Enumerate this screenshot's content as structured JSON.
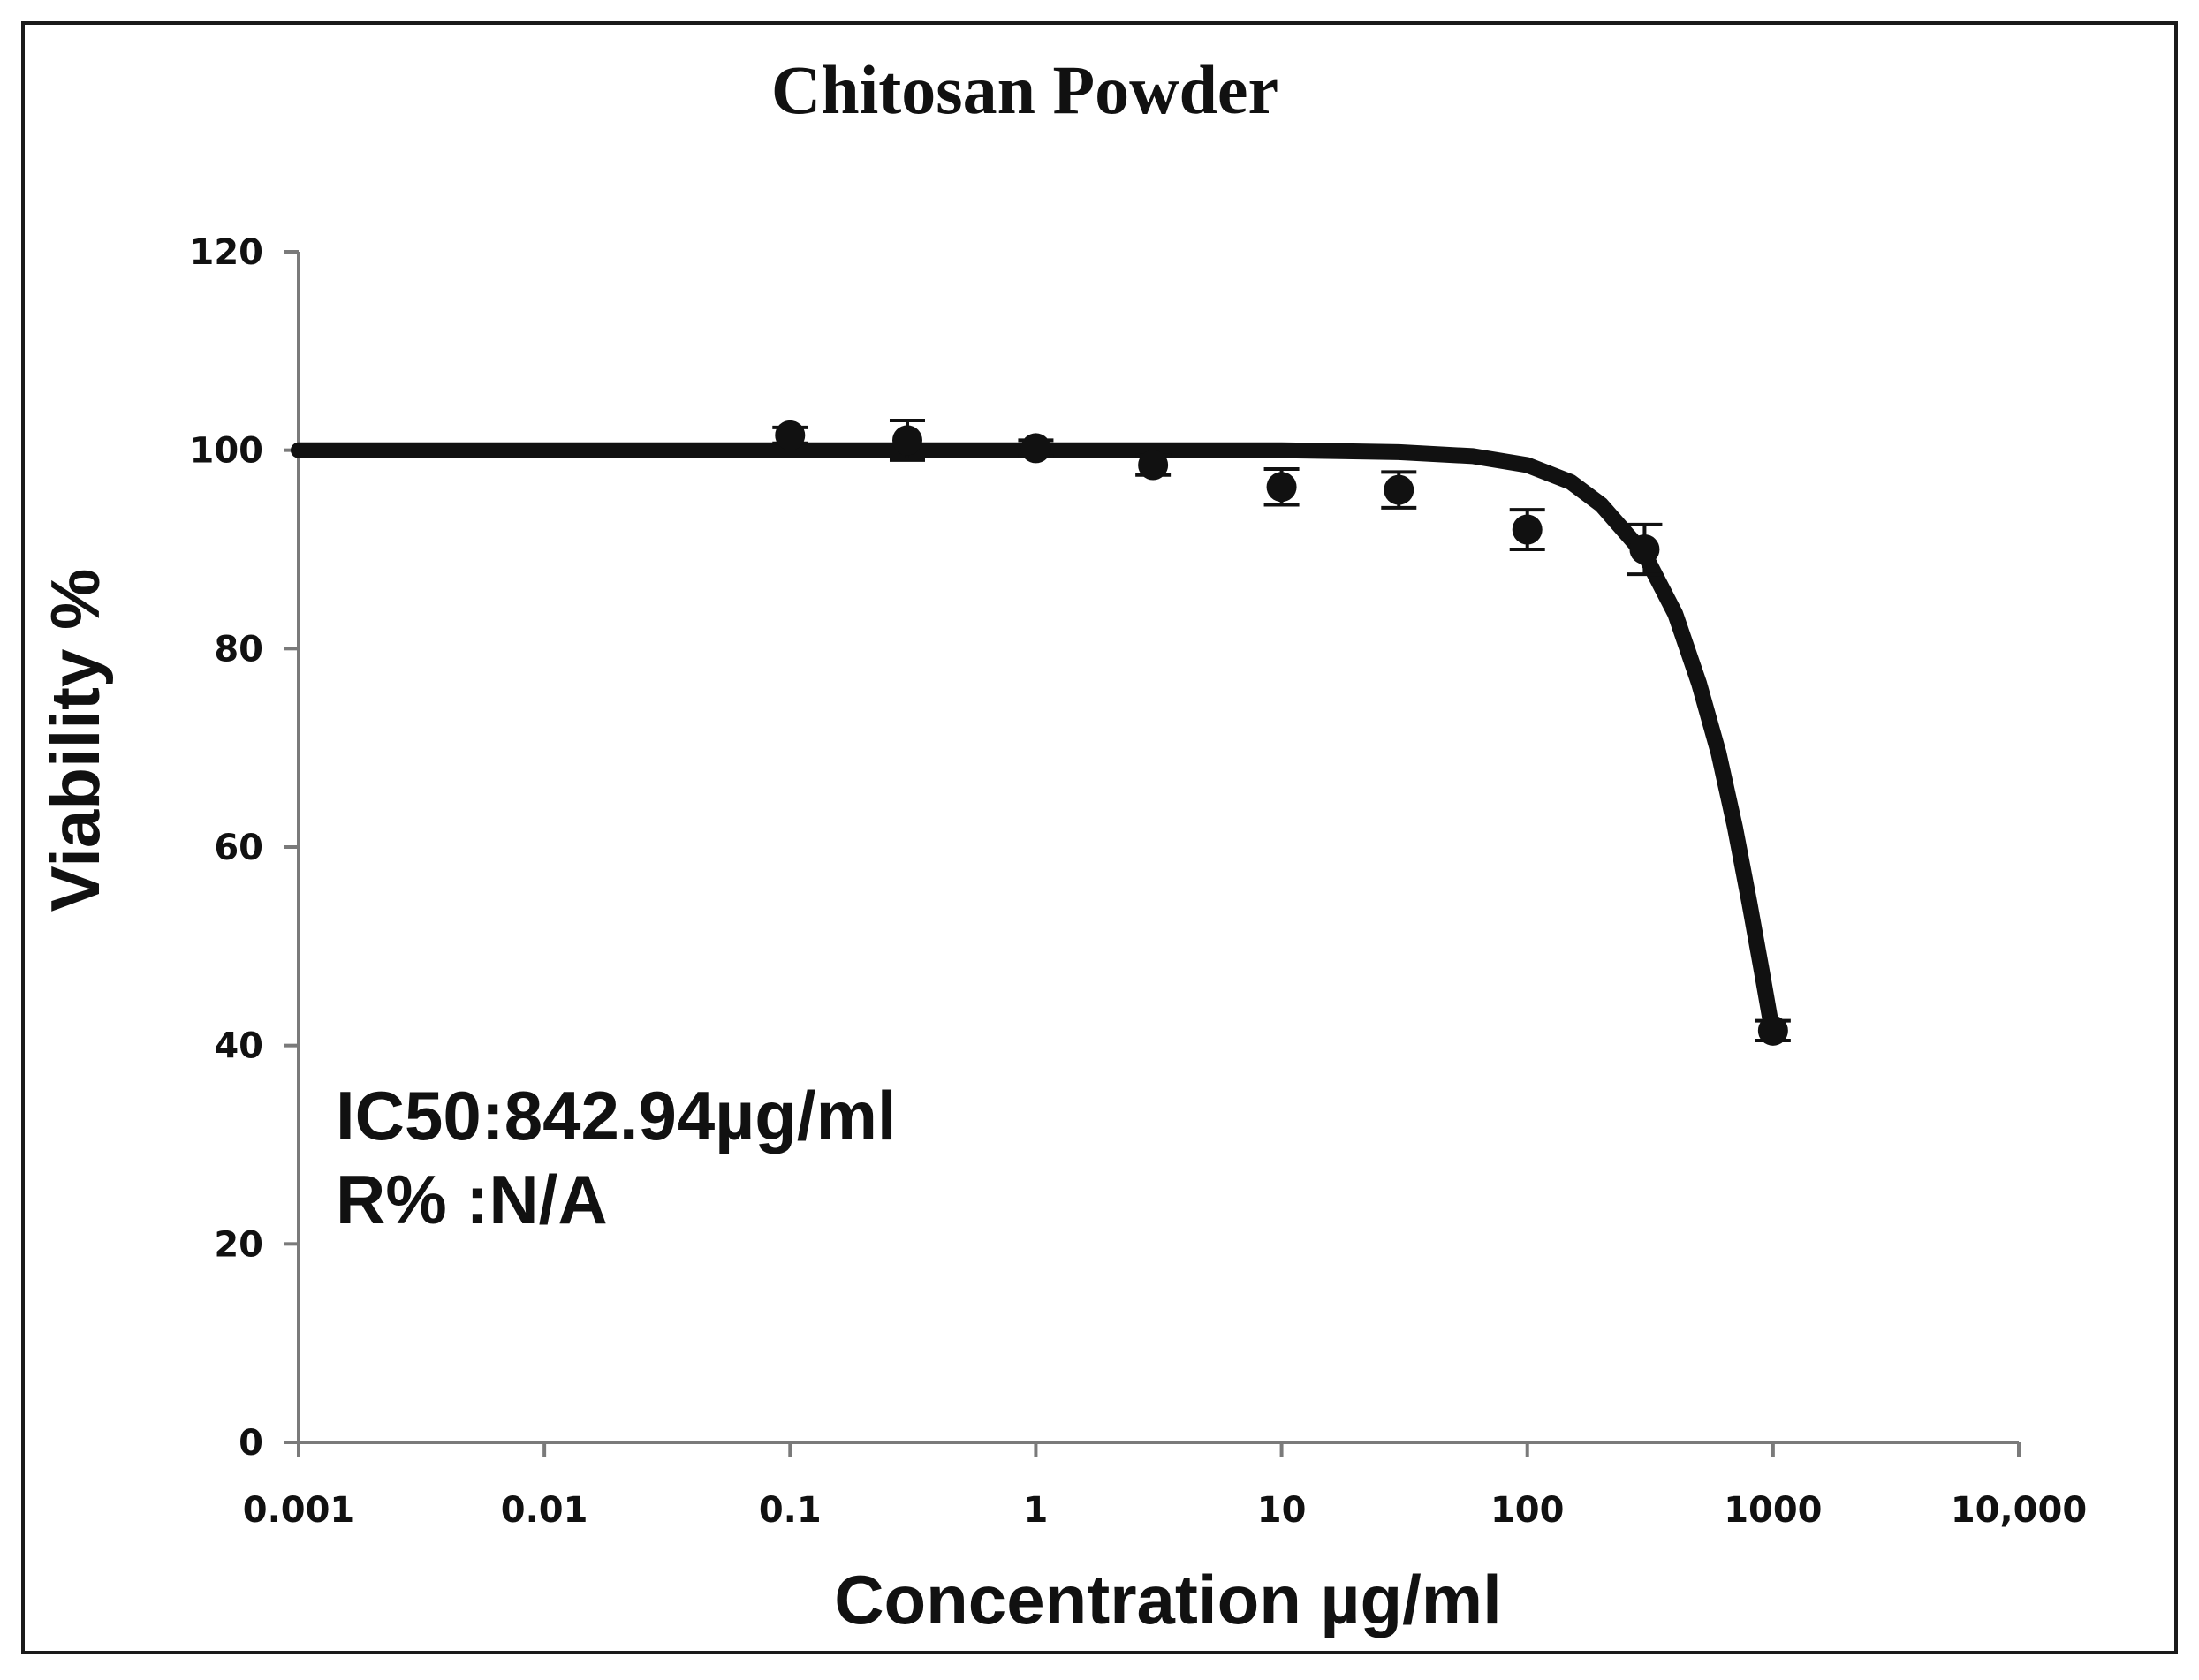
{
  "chart_data": {
    "type": "scatter",
    "title": "Chitosan Powder",
    "xlabel": "Concentration µg/ml",
    "ylabel": "Viability %",
    "x_scale": "log",
    "xlim": [
      0.001,
      10000
    ],
    "ylim": [
      0,
      120
    ],
    "x_ticks": [
      0.001,
      0.01,
      0.1,
      1,
      10,
      100,
      1000,
      10000
    ],
    "x_tick_labels": [
      "0.001",
      "0.01",
      "0.1",
      "1",
      "10",
      "100",
      "1000",
      "10,000"
    ],
    "y_ticks": [
      0,
      20,
      40,
      60,
      80,
      100,
      120
    ],
    "y_tick_labels": [
      "0",
      "20",
      "40",
      "60",
      "80",
      "100",
      "120"
    ],
    "grid": false,
    "legend": "none",
    "colors": {
      "marks": "#111111",
      "background": "#ffffff"
    },
    "points": [
      {
        "x": 0.1,
        "y": 101.5,
        "err": 0.8
      },
      {
        "x": 0.3,
        "y": 101.0,
        "err": 2.0
      },
      {
        "x": 1,
        "y": 100.2,
        "err": 0.8
      },
      {
        "x": 3,
        "y": 98.5,
        "err": 1.0
      },
      {
        "x": 10,
        "y": 96.3,
        "err": 1.8
      },
      {
        "x": 30,
        "y": 96.0,
        "err": 1.8
      },
      {
        "x": 100,
        "y": 92.0,
        "err": 2.0
      },
      {
        "x": 300,
        "y": 90.0,
        "err": 2.5
      },
      {
        "x": 1000,
        "y": 41.5,
        "err": 1.0
      }
    ],
    "fit_curve": {
      "x": [
        0.001,
        0.01,
        0.1,
        1,
        10,
        30,
        60,
        100,
        150,
        200,
        300,
        400,
        500,
        600,
        700,
        800,
        900,
        1000
      ],
      "y": [
        100,
        100,
        100,
        100,
        100,
        99.8,
        99.4,
        98.5,
        96.8,
        94.5,
        89.5,
        83.5,
        76.5,
        69.5,
        62.0,
        54.5,
        47.5,
        41.0
      ]
    },
    "annotations": [
      "IC50:842.94µg/ml",
      "R% :N/A"
    ]
  }
}
